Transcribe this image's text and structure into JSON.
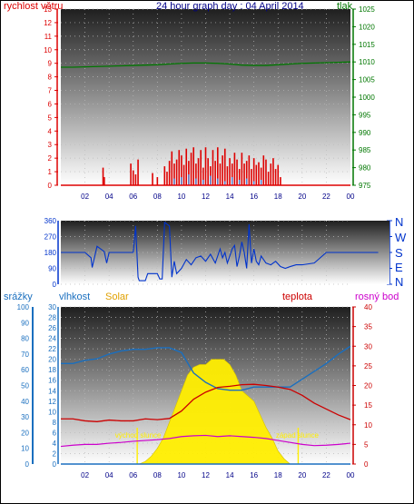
{
  "colors": {
    "wind": "#dd0000",
    "pressure": "#007700",
    "direction": "#0033cc",
    "rain": "#1a6fbf",
    "humidity": "#1a6fbf",
    "solar": "#ffee00",
    "temperature": "#cc0000",
    "dewpoint": "#cc00cc",
    "time_axis": "#000088"
  },
  "chart_data": [
    {
      "type": "line",
      "title": "24 hour graph day : 04 April 2014",
      "left_axis_label": "rychlost větru",
      "right_axis_label": "tlak",
      "x_ticks": [
        "02",
        "04",
        "06",
        "08",
        "10",
        "12",
        "14",
        "16",
        "18",
        "20",
        "22",
        "00"
      ],
      "x_range": [
        0,
        24
      ],
      "left_ylim": [
        0,
        13
      ],
      "left_ticks": [
        0,
        1,
        2,
        3,
        4,
        5,
        6,
        7,
        8,
        9,
        10,
        11,
        12,
        13
      ],
      "right_ylim": [
        975,
        1025
      ],
      "right_ticks": [
        975,
        980,
        985,
        990,
        995,
        1000,
        1005,
        1010,
        1015,
        1020,
        1025
      ],
      "pressure": {
        "x": [
          0,
          1,
          2,
          3,
          4,
          5,
          6,
          7,
          8,
          9,
          10,
          11,
          12,
          13,
          14,
          15,
          16,
          17,
          18,
          19,
          20,
          21,
          22,
          23,
          24
        ],
        "y": [
          1008.5,
          1008.5,
          1008.6,
          1008.7,
          1008.8,
          1008.9,
          1009.0,
          1009.1,
          1009.2,
          1009.4,
          1009.6,
          1009.7,
          1009.7,
          1009.6,
          1009.4,
          1009.1,
          1009.0,
          1009.0,
          1009.2,
          1009.4,
          1009.6,
          1009.7,
          1009.8,
          1009.9,
          1010.0
        ]
      },
      "wind_bars": {
        "x": [
          3.5,
          3.6,
          5.8,
          6.0,
          6.2,
          6.4,
          7.6,
          8.0,
          8.6,
          8.8,
          9.0,
          9.2,
          9.4,
          9.6,
          9.8,
          10.0,
          10.2,
          10.4,
          10.6,
          10.8,
          11.0,
          11.2,
          11.4,
          11.6,
          11.8,
          12.0,
          12.2,
          12.4,
          12.6,
          12.8,
          13.0,
          13.2,
          13.4,
          13.6,
          13.8,
          14.0,
          14.2,
          14.4,
          14.6,
          14.8,
          15.0,
          15.2,
          15.4,
          15.6,
          15.8,
          16.0,
          16.2,
          16.4,
          16.6,
          16.8,
          17.0,
          17.2,
          17.4,
          17.6,
          17.8,
          18.0,
          18.2
        ],
        "y": [
          1.3,
          0.6,
          1.6,
          1.1,
          0.8,
          1.9,
          0.9,
          0.6,
          1.4,
          1.0,
          1.8,
          2.5,
          1.6,
          1.9,
          2.6,
          2.2,
          1.5,
          2.7,
          1.8,
          2.4,
          2.8,
          1.6,
          2.0,
          2.6,
          1.3,
          2.8,
          2.0,
          1.4,
          2.6,
          1.8,
          2.8,
          1.6,
          2.2,
          2.7,
          1.4,
          2.0,
          1.6,
          2.4,
          1.9,
          1.2,
          2.4,
          1.6,
          1.8,
          2.2,
          1.2,
          2.0,
          1.5,
          1.7,
          1.3,
          2.2,
          1.9,
          1.0,
          1.6,
          2.0,
          1.2,
          1.5,
          0.6
        ]
      },
      "gust_bars": {
        "x": [
          9.4,
          10.0,
          10.6,
          11.2,
          11.8,
          12.4,
          13.0,
          13.6,
          14.2,
          14.8,
          15.4,
          16.0,
          16.6
        ],
        "y": [
          0.5,
          0.6,
          0.8,
          0.5,
          0.4,
          0.7,
          0.5,
          0.3,
          0.6,
          0.4,
          0.5,
          0.3,
          0.4
        ]
      }
    },
    {
      "type": "line",
      "right_labels": [
        "N",
        "W",
        "S",
        "E",
        "N"
      ],
      "ylim": [
        0,
        360
      ],
      "ticks": [
        0,
        90,
        180,
        270,
        360
      ],
      "x_range": [
        0,
        24
      ],
      "direction": {
        "x": [
          0,
          2,
          2.5,
          2.6,
          3.0,
          3.6,
          3.8,
          4.0,
          5.0,
          6.0,
          6.2,
          6.4,
          6.5,
          7.0,
          7.2,
          7.4,
          8.0,
          8.2,
          8.4,
          8.6,
          9.0,
          9.2,
          9.4,
          9.6,
          10.0,
          10.4,
          10.8,
          11.2,
          11.6,
          12.0,
          12.4,
          12.8,
          13.2,
          13.4,
          13.6,
          13.8,
          14.0,
          14.2,
          14.4,
          14.6,
          14.8,
          15.0,
          15.2,
          15.4,
          15.6,
          15.8,
          16.0,
          16.2,
          16.4,
          16.6,
          17.0,
          17.4,
          17.8,
          18.2,
          18.6,
          19.0,
          19.5,
          20.0,
          21.0,
          22.0,
          23.0,
          24.0
        ],
        "y": [
          180,
          180,
          150,
          95,
          215,
          185,
          120,
          180,
          180,
          180,
          330,
          40,
          20,
          20,
          60,
          60,
          60,
          30,
          30,
          350,
          330,
          40,
          130,
          60,
          90,
          140,
          110,
          150,
          160,
          130,
          170,
          120,
          200,
          150,
          180,
          120,
          160,
          200,
          220,
          100,
          160,
          240,
          180,
          90,
          340,
          120,
          200,
          130,
          110,
          160,
          120,
          110,
          130,
          100,
          90,
          100,
          110,
          110,
          120,
          180,
          180,
          180
        ]
      }
    },
    {
      "type": "area",
      "labels_top": [
        "srážky",
        "vlhkost",
        "Solar",
        "teplota",
        "rosný bod"
      ],
      "rain_ylim": [
        0,
        100
      ],
      "rain_ticks": [
        0,
        10,
        20,
        30,
        40,
        50,
        60,
        70,
        80,
        90,
        100
      ],
      "temp_left_ticks": [
        0,
        2,
        4,
        6,
        8,
        10,
        12,
        14,
        16,
        18,
        20,
        22,
        24,
        26,
        28,
        30
      ],
      "temp_left_ylim": [
        0,
        30
      ],
      "right_ylim": [
        0,
        40
      ],
      "right_ticks": [
        0,
        5,
        10,
        15,
        20,
        25,
        30,
        35,
        40
      ],
      "sunrise": {
        "label": "východ slunce",
        "x": 6.33
      },
      "sunset": {
        "label": "západ slunce",
        "x": 19.67
      },
      "humidity": {
        "x": [
          0,
          1,
          2,
          3,
          4,
          5,
          6,
          7,
          8,
          9,
          10,
          11,
          12,
          13,
          14,
          15,
          16,
          17,
          18,
          19,
          20,
          21,
          22,
          23,
          24
        ],
        "y": [
          64,
          64,
          66,
          67,
          70,
          72,
          73,
          73,
          74,
          74,
          71,
          58,
          52,
          48,
          47,
          47,
          49,
          49,
          49,
          49,
          54,
          59,
          64,
          70,
          75
        ]
      },
      "temperature": {
        "x": [
          0,
          1,
          2,
          3,
          4,
          5,
          6,
          7,
          8,
          9,
          10,
          11,
          12,
          13,
          14,
          15,
          16,
          17,
          18,
          19,
          20,
          21,
          22,
          23,
          24
        ],
        "y": [
          11.5,
          11.5,
          11.0,
          10.8,
          11.2,
          11.0,
          11.0,
          11.5,
          11.3,
          11.6,
          13.5,
          16.5,
          18.3,
          19.5,
          19.8,
          20.2,
          20.3,
          20.0,
          19.6,
          19.0,
          17.5,
          15.5,
          14.0,
          12.5,
          11.3
        ]
      },
      "dewpoint": {
        "x": [
          0,
          1,
          2,
          3,
          4,
          5,
          6,
          7,
          8,
          9,
          10,
          11,
          12,
          13,
          14,
          15,
          16,
          17,
          18,
          19,
          20,
          21,
          22,
          23,
          24
        ],
        "y": [
          4.5,
          4.8,
          5.0,
          5.0,
          5.3,
          5.5,
          5.8,
          6.0,
          6.2,
          6.5,
          7.0,
          7.2,
          7.3,
          7.0,
          7.2,
          7.0,
          6.8,
          6.5,
          6.0,
          5.5,
          5.0,
          4.7,
          4.8,
          5.0,
          5.3
        ]
      },
      "solar": {
        "x": [
          6.5,
          7,
          7.5,
          8,
          8.5,
          9,
          9.5,
          10,
          10.5,
          11,
          11.5,
          12,
          12.5,
          13,
          13.5,
          14,
          14.5,
          15,
          15.5,
          16,
          16.5,
          17,
          17.5,
          18,
          18.5,
          19
        ],
        "y": [
          0,
          0.5,
          1.5,
          3,
          5,
          8,
          11,
          14,
          17,
          18.5,
          19,
          19,
          20,
          20,
          20,
          19,
          17,
          14,
          13,
          12,
          9.5,
          7,
          5,
          2.5,
          1,
          0
        ]
      }
    }
  ]
}
